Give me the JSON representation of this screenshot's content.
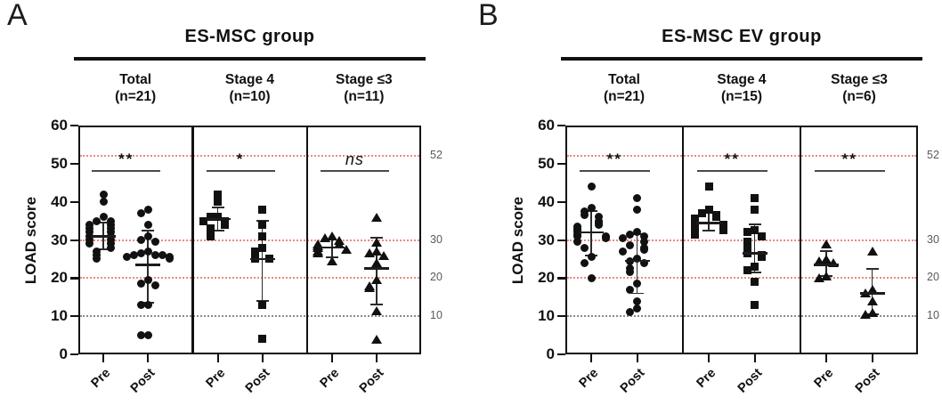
{
  "chart_data": [
    {
      "type": "scatter",
      "panel_label": "A",
      "title": "ES-MSC group",
      "ylabel": "LOAD score",
      "ylim": [
        0,
        60
      ],
      "yticks": [
        0,
        10,
        20,
        30,
        40,
        50,
        60
      ],
      "x_labels": [
        "Pre",
        "Post"
      ],
      "grid": "off",
      "reference_lines": [
        {
          "y": 52,
          "label": "52",
          "color": "#e88b82",
          "style": "dotted"
        },
        {
          "y": 30,
          "label": "30",
          "color": "#e88b82",
          "style": "dotted"
        },
        {
          "y": 20,
          "label": "20",
          "color": "#e88b82",
          "style": "dotted"
        },
        {
          "y": 10,
          "label": "10",
          "color": "#8a8a8a",
          "style": "dotted"
        }
      ],
      "subpanels": [
        {
          "name": "Total",
          "n_label": "(n=21)",
          "n": 21,
          "marker": "circle",
          "significance": "**",
          "pre": {
            "values": [
              42,
              40,
              36,
              35,
              35,
              34,
              34,
              33,
              33,
              32,
              32,
              31,
              31,
              30,
              30,
              29,
              29,
              28,
              27,
              26,
              25
            ],
            "mean": 31,
            "sd_low": 27.5,
            "sd_high": 34.5
          },
          "post": {
            "values": [
              38,
              37,
              34,
              31,
              30,
              29.5,
              27,
              26.5,
              26,
              26,
              26,
              25.5,
              25.5,
              25,
              19.5,
              18.5,
              18,
              13,
              13,
              5,
              5
            ],
            "mean": 23.5,
            "sd_low": 13.5,
            "sd_high": 32.5
          }
        },
        {
          "name": "Stage 4",
          "n_label": "(n=10)",
          "n": 10,
          "marker": "square",
          "significance": "*",
          "pre": {
            "values": [
              42,
              40,
              36,
              36,
              35,
              35,
              34,
              33,
              32,
              31
            ],
            "mean": 35.5,
            "sd_low": 32.5,
            "sd_high": 38.5
          },
          "post": {
            "values": [
              38,
              34,
              31,
              28,
              27,
              26,
              25,
              25,
              13,
              4
            ],
            "mean": 25,
            "sd_low": 14,
            "sd_high": 35
          }
        },
        {
          "name": "Stage ≤3",
          "n_label": "(n=11)",
          "n": 11,
          "marker": "triangle",
          "significance": "ns",
          "pre": {
            "values": [
              31,
              30.5,
              30,
              29,
              29,
              28.5,
              28,
              27.5,
              27,
              26.5,
              24.5
            ],
            "mean": 28,
            "sd_low": 25.5,
            "sd_high": 30
          },
          "post": {
            "values": [
              36,
              29.5,
              27,
              26.5,
              26,
              24,
              19.5,
              18,
              17.5,
              11.5,
              4
            ],
            "mean": 22.5,
            "sd_low": 13,
            "sd_high": 30.5
          }
        }
      ]
    },
    {
      "type": "scatter",
      "panel_label": "B",
      "title": "ES-MSC EV group",
      "ylabel": "LOAD score",
      "ylim": [
        0,
        60
      ],
      "yticks": [
        0,
        10,
        20,
        30,
        40,
        50,
        60
      ],
      "x_labels": [
        "Pre",
        "Post"
      ],
      "grid": "off",
      "reference_lines": [
        {
          "y": 52,
          "label": "52",
          "color": "#e88b82",
          "style": "dotted"
        },
        {
          "y": 30,
          "label": "30",
          "color": "#e88b82",
          "style": "dotted"
        },
        {
          "y": 20,
          "label": "20",
          "color": "#e88b82",
          "style": "dotted"
        },
        {
          "y": 10,
          "label": "10",
          "color": "#8a8a8a",
          "style": "dotted"
        }
      ],
      "subpanels": [
        {
          "name": "Total",
          "n_label": "(n=21)",
          "n": 21,
          "marker": "circle",
          "significance": "**",
          "pre": {
            "values": [
              44,
              38.5,
              37.5,
              36.5,
              36,
              35,
              34.5,
              34,
              33.5,
              33,
              32.5,
              32,
              31.5,
              31,
              31,
              30.5,
              29.5,
              28,
              25.5,
              24,
              20
            ],
            "mean": 32,
            "sd_low": 26,
            "sd_high": 37.5
          },
          "post": {
            "values": [
              41,
              38,
              32,
              31.5,
              31,
              30.5,
              29.5,
              28.5,
              28,
              27.5,
              27,
              25,
              24.5,
              24,
              22.5,
              21.5,
              18.5,
              17,
              14,
              12,
              11
            ],
            "mean": 24.5,
            "sd_low": 16,
            "sd_high": 31.5
          }
        },
        {
          "name": "Stage 4",
          "n_label": "(n=15)",
          "n": 15,
          "marker": "square",
          "significance": "**",
          "pre": {
            "values": [
              44,
              38,
              37,
              36.5,
              36,
              35.5,
              35,
              34.5,
              34,
              34,
              33.5,
              33,
              32.5,
              32,
              31.5
            ],
            "mean": 34.5,
            "sd_low": 32.5,
            "sd_high": 37
          },
          "post": {
            "values": [
              41,
              38,
              32.5,
              32,
              31,
              29.5,
              28.5,
              27.5,
              26.5,
              26,
              25.5,
              23,
              22,
              19,
              13
            ],
            "mean": 26.5,
            "sd_low": 21.5,
            "sd_high": 34
          }
        },
        {
          "name": "Stage ≤3",
          "n_label": "(n=6)",
          "n": 6,
          "marker": "triangle",
          "significance": "**",
          "pre": {
            "values": [
              29,
              25,
              24.5,
              24,
              20.5,
              20
            ],
            "mean": 23.5,
            "sd_low": 20.5,
            "sd_high": 27
          },
          "post": {
            "values": [
              27,
              17,
              16,
              14,
              11,
              10.5
            ],
            "mean": 16,
            "sd_low": 10.5,
            "sd_high": 22.5
          }
        }
      ]
    }
  ]
}
